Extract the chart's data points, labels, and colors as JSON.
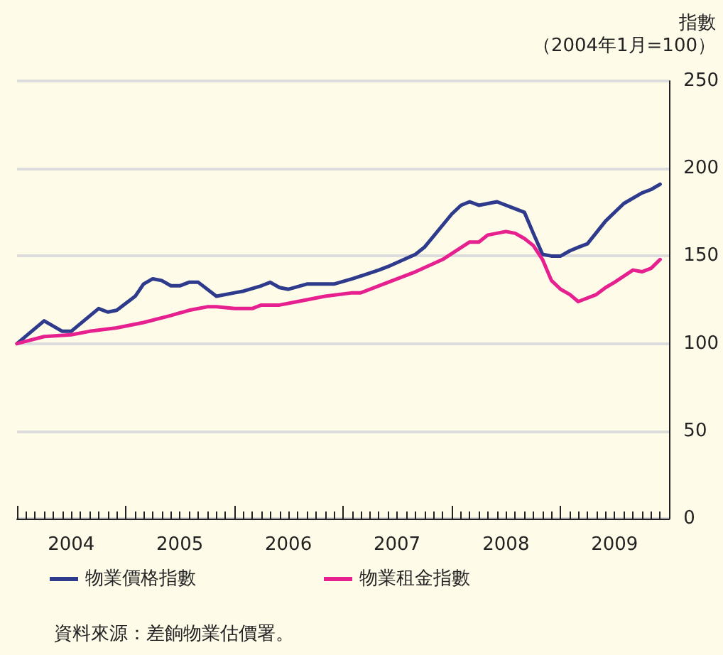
{
  "chart_data": {
    "type": "line",
    "ylabel": "指數（2004年1月=100）",
    "annotations": [
      "資料來源：差餉物業估價署。"
    ],
    "xlim": [
      "2004-01",
      "2010-01"
    ],
    "xticks": [
      {
        "value": "2004-07",
        "label": "2004"
      },
      {
        "value": "2005-07",
        "label": "2005"
      },
      {
        "value": "2006-07",
        "label": "2006"
      },
      {
        "value": "2007-07",
        "label": "2007"
      },
      {
        "value": "2008-07",
        "label": "2008"
      },
      {
        "value": "2009-07",
        "label": "2009"
      }
    ],
    "ylim": [
      0,
      250
    ],
    "yticks": [
      0,
      50,
      100,
      150,
      200,
      250
    ],
    "grid": "y",
    "legend": "bottom",
    "marker": "none",
    "line_style": "solid",
    "series": [
      {
        "name": "物業價格指數",
        "color": "#2e3a8c",
        "x": [
          "2004-01",
          "2004-04",
          "2004-06",
          "2004-07",
          "2004-10",
          "2004-11",
          "2004-12",
          "2005-02",
          "2005-03",
          "2005-04",
          "2005-05",
          "2005-06",
          "2005-07",
          "2005-08",
          "2005-09",
          "2005-11",
          "2006-01",
          "2006-02",
          "2006-04",
          "2006-05",
          "2006-06",
          "2006-07",
          "2006-09",
          "2006-12",
          "2007-02",
          "2007-05",
          "2007-06",
          "2007-09",
          "2007-10",
          "2008-01",
          "2008-02",
          "2008-03",
          "2008-04",
          "2008-05",
          "2008-06",
          "2008-08",
          "2008-09",
          "2008-10",
          "2008-11",
          "2008-12",
          "2009-01",
          "2009-02",
          "2009-03",
          "2009-04",
          "2009-06",
          "2009-08",
          "2009-10",
          "2009-11",
          "2009-12"
        ],
        "values": [
          100,
          113,
          107,
          107,
          120,
          118,
          119,
          127,
          134,
          137,
          136,
          133,
          133,
          135,
          135,
          127,
          129,
          130,
          133,
          135,
          132,
          131,
          134,
          134,
          137,
          142,
          144,
          151,
          155,
          174,
          179,
          181,
          179,
          180,
          181,
          177,
          175,
          163,
          151,
          150,
          150,
          153,
          155,
          157,
          170,
          180,
          186,
          188,
          191
        ]
      },
      {
        "name": "物業租金指數",
        "color": "#e6208f",
        "x": [
          "2004-01",
          "2004-04",
          "2004-07",
          "2004-09",
          "2004-12",
          "2005-03",
          "2005-06",
          "2005-08",
          "2005-10",
          "2005-11",
          "2006-01",
          "2006-03",
          "2006-04",
          "2006-06",
          "2006-08",
          "2006-11",
          "2007-02",
          "2007-03",
          "2007-06",
          "2007-09",
          "2007-12",
          "2008-03",
          "2008-04",
          "2008-05",
          "2008-07",
          "2008-08",
          "2008-09",
          "2008-10",
          "2008-11",
          "2008-12",
          "2009-01",
          "2009-02",
          "2009-03",
          "2009-05",
          "2009-06",
          "2009-07",
          "2009-09",
          "2009-10",
          "2009-11",
          "2009-12"
        ],
        "values": [
          100,
          104,
          105,
          107,
          109,
          112,
          116,
          119,
          121,
          121,
          120,
          120,
          122,
          122,
          124,
          127,
          129,
          129,
          135,
          141,
          148,
          158,
          158,
          162,
          164,
          163,
          160,
          156,
          148,
          136,
          131,
          128,
          124,
          128,
          132,
          135,
          142,
          141,
          143,
          148
        ]
      }
    ]
  }
}
